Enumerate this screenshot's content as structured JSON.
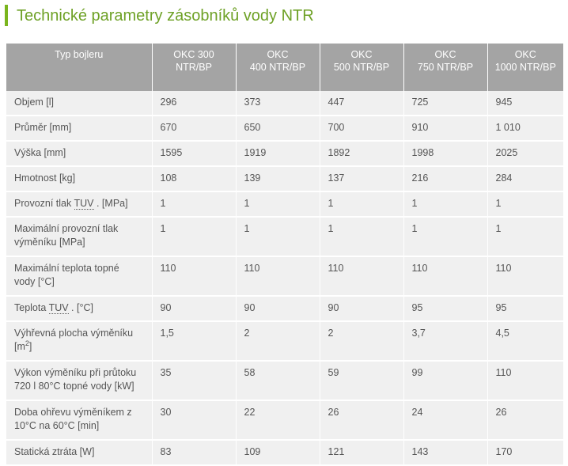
{
  "title": "Technické parametry zásobníků vody NTR",
  "header": [
    "Typ bojleru",
    "OKC 300 NTR/BP",
    "OKC 400 NTR/BP",
    "OKC 500 NTR/BP",
    "OKC 750 NTR/BP",
    "OKC 1000 NTR/BP"
  ],
  "header_lines": [
    [
      "Typ bojleru"
    ],
    [
      "OKC 300",
      "NTR/BP"
    ],
    [
      "OKC",
      "400 NTR/BP"
    ],
    [
      "OKC",
      "500 NTR/BP"
    ],
    [
      "OKC",
      "750 NTR/BP"
    ],
    [
      "OKC",
      "1000 NTR/BP"
    ]
  ],
  "rows": [
    {
      "label": [
        "Objem [l]"
      ],
      "values": [
        "296",
        "373",
        "447",
        "725",
        "945"
      ]
    },
    {
      "label": [
        "Průměr [mm]"
      ],
      "values": [
        "670",
        "650",
        "700",
        "910",
        "1 010"
      ]
    },
    {
      "label": [
        "Výška [mm]"
      ],
      "values": [
        "1595",
        "1919",
        "1892",
        "1998",
        "2025"
      ]
    },
    {
      "label": [
        "Hmotnost [kg]"
      ],
      "values": [
        "108",
        "139",
        "137",
        "216",
        "284"
      ]
    },
    {
      "label_parts": {
        "pre": "Provozní tlak ",
        "abbr": "TUV",
        "post": " . [MPa]"
      },
      "values": [
        "1",
        "1",
        "1",
        "1",
        "1"
      ]
    },
    {
      "label": [
        "Maximální provozní tlak",
        "výměníku [MPa]"
      ],
      "values": [
        "1",
        "1",
        "1",
        "1",
        "1"
      ]
    },
    {
      "label": [
        "Maximální teplota topné",
        "vody [°C]"
      ],
      "values": [
        "110",
        "110",
        "110",
        "110",
        "110"
      ]
    },
    {
      "label_parts": {
        "pre": "Teplota ",
        "abbr": "TUV",
        "post": " . [°C]"
      },
      "values": [
        "90",
        "90",
        "90",
        "95",
        "95"
      ]
    },
    {
      "label_sup": {
        "line1": "Výhřevná plocha výměníku",
        "pre": "[m",
        "sup": "2",
        "post": "]"
      },
      "values": [
        "1,5",
        "2",
        "2",
        "3,7",
        "4,5"
      ]
    },
    {
      "label": [
        "Výkon výměníku při průtoku",
        "720 l 80°C topné vody [kW]"
      ],
      "values": [
        "35",
        "58",
        "59",
        "99",
        "110"
      ]
    },
    {
      "label": [
        "Doba ohřevu výměníkem z",
        "10°C na 60°C [min]"
      ],
      "values": [
        "30",
        "22",
        "26",
        "24",
        "26"
      ]
    },
    {
      "label": [
        "Statická ztráta [W]"
      ],
      "values": [
        "83",
        "109",
        "121",
        "143",
        "170"
      ]
    }
  ],
  "colors": {
    "accent": "#7ab51d",
    "title": "#6ea126",
    "header_bg": "#a4a4a4",
    "row_bg": "#f0f0f0"
  }
}
